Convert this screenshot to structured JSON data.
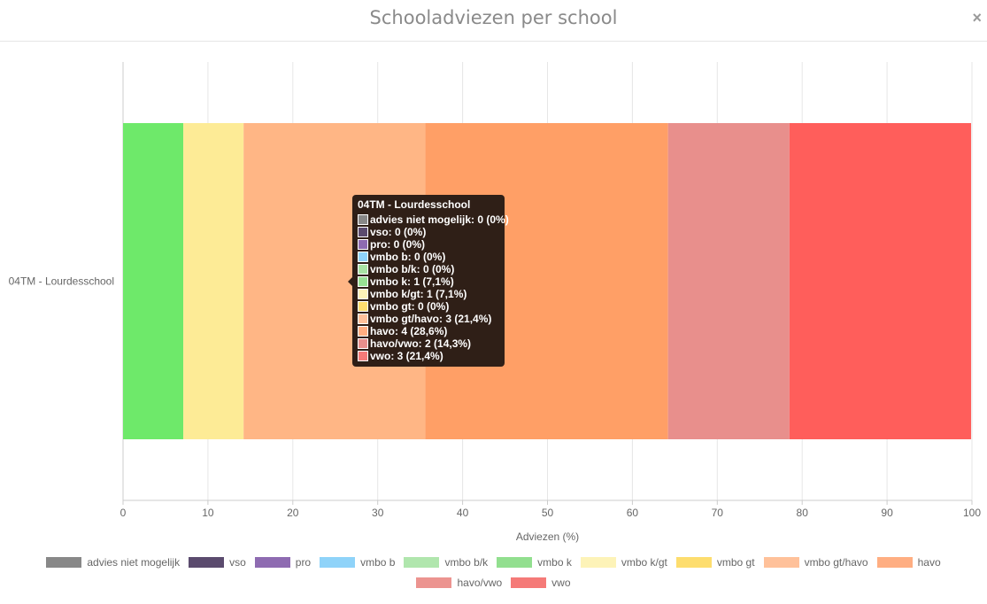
{
  "modal": {
    "title": "Schooladviezen per school",
    "close_symbol": "×"
  },
  "chart_data": {
    "type": "bar",
    "orientation": "horizontal",
    "stacked": true,
    "categories": [
      "04TM - Lourdesschool"
    ],
    "xlabel": "Adviezen (%)",
    "ylabel": "",
    "xlim": [
      0,
      100
    ],
    "xticks": [
      0,
      10,
      20,
      30,
      40,
      50,
      60,
      70,
      80,
      90,
      100
    ],
    "grid": true,
    "legend_position": "bottom",
    "series": [
      {
        "name": "advies niet mogelijk",
        "color": "#888888",
        "values": [
          0
        ]
      },
      {
        "name": "vso",
        "color": "#5b4b6e",
        "values": [
          0
        ]
      },
      {
        "name": "pro",
        "color": "#8e6bb1",
        "values": [
          0
        ]
      },
      {
        "name": "vmbo b",
        "color": "#8fd3f9",
        "values": [
          0
        ]
      },
      {
        "name": "vmbo b/k",
        "color": "#a8e3a4",
        "values": [
          0
        ]
      },
      {
        "name": "vmbo k",
        "color": "#6ee96a",
        "values": [
          7.1
        ]
      },
      {
        "name": "vmbo k/gt",
        "color": "#fdeb96",
        "values": [
          7.1
        ]
      },
      {
        "name": "vmbo gt",
        "color": "#fddd6e",
        "values": [
          0
        ]
      },
      {
        "name": "vmbo gt/havo",
        "color": "#ffb685",
        "values": [
          21.4
        ]
      },
      {
        "name": "havo",
        "color": "#ff9f66",
        "values": [
          28.6
        ]
      },
      {
        "name": "havo/vwo",
        "color": "#e88f8c",
        "values": [
          14.3
        ]
      },
      {
        "name": "vwo",
        "color": "#ff5e5b",
        "values": [
          21.4
        ]
      }
    ]
  },
  "tooltip": {
    "title": "04TM - Lourdesschool",
    "rows": [
      {
        "text": "advies niet mogelijk: 0 (0%)",
        "color": "#888888"
      },
      {
        "text": "vso: 0 (0%)",
        "color": "#5b4b6e"
      },
      {
        "text": "pro: 0 (0%)",
        "color": "#8e6bb1"
      },
      {
        "text": "vmbo b: 0 (0%)",
        "color": "#8fd3f9"
      },
      {
        "text": "vmbo b/k: 0 (0%)",
        "color": "#a8e3a4"
      },
      {
        "text": "vmbo k: 1 (7,1%)",
        "color": "#98e094"
      },
      {
        "text": "vmbo k/gt: 1 (7,1%)",
        "color": "#fdf3b8"
      },
      {
        "text": "vmbo gt: 0 (0%)",
        "color": "#fddd6e"
      },
      {
        "text": "vmbo gt/havo: 3 (21,4%)",
        "color": "#ffc19a"
      },
      {
        "text": "havo: 4 (28,6%)",
        "color": "#ffae82"
      },
      {
        "text": "havo/vwo: 2 (14,3%)",
        "color": "#e88f8c"
      },
      {
        "text": "vwo: 3 (21,4%)",
        "color": "#f57a78"
      }
    ]
  },
  "legend": {
    "rows": [
      [
        {
          "label": "advies niet mogelijk",
          "color": "#888888"
        },
        {
          "label": "vso",
          "color": "#5b4b6e"
        },
        {
          "label": "pro",
          "color": "#8e6bb1"
        },
        {
          "label": "vmbo b",
          "color": "#8fd3f9"
        },
        {
          "label": "vmbo b/k",
          "color": "#b0e6ad"
        },
        {
          "label": "vmbo k",
          "color": "#92df8f"
        },
        {
          "label": "vmbo k/gt",
          "color": "#fdf3b8"
        },
        {
          "label": "vmbo gt",
          "color": "#fddd6e"
        },
        {
          "label": "vmbo gt/havo",
          "color": "#ffc19a"
        },
        {
          "label": "havo",
          "color": "#ffae82"
        }
      ],
      [
        {
          "label": "havo/vwo",
          "color": "#ec9490"
        },
        {
          "label": "vwo",
          "color": "#f57a78"
        }
      ]
    ]
  }
}
